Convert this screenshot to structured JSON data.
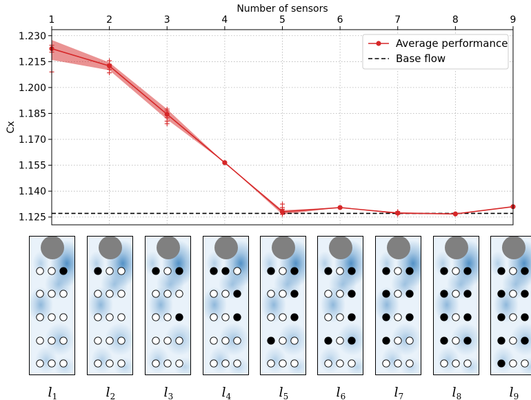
{
  "chart_data": {
    "type": "line",
    "xlabel": "Number of sensors",
    "ylabel": "Cx",
    "xlim": [
      1,
      9
    ],
    "ylim": [
      1.1205,
      1.2335
    ],
    "x_ticks": [
      1,
      2,
      3,
      4,
      5,
      6,
      7,
      8,
      9
    ],
    "y_ticks": [
      "1.230",
      "1.215",
      "1.200",
      "1.185",
      "1.170",
      "1.155",
      "1.140",
      "1.125"
    ],
    "grid": true,
    "legend_position": "top-right",
    "series": [
      {
        "name": "Average performance",
        "color": "#d62728",
        "x": [
          1,
          2,
          3,
          4,
          5,
          6,
          7,
          8,
          9
        ],
        "y": [
          1.2225,
          1.2125,
          1.1845,
          1.1565,
          1.128,
          1.1305,
          1.1273,
          1.1268,
          1.131
        ],
        "band_upper": [
          1.2275,
          1.2145,
          1.1875,
          1.1565,
          1.129,
          1.1305,
          1.1278,
          1.127,
          1.131
        ],
        "band_lower": [
          1.216,
          1.21,
          1.1815,
          1.1565,
          1.1265,
          1.1305,
          1.1268,
          1.1266,
          1.131
        ],
        "samples": [
          [
            1.209,
            1.2205,
            1.2225,
            1.2245
          ],
          [
            1.2085,
            1.2105,
            1.2125,
            1.2135,
            1.2155
          ],
          [
            1.179,
            1.1805,
            1.1825,
            1.1865,
            1.1875
          ],
          [],
          [
            1.1265,
            1.1275,
            1.1295,
            1.1305,
            1.1325
          ],
          [],
          [
            1.1265,
            1.1275,
            1.1282
          ],
          [
            1.1268
          ],
          []
        ]
      },
      {
        "name": "Base flow",
        "color": "#000000",
        "style": "dashed",
        "y_constant": 1.1271
      }
    ]
  },
  "panels": {
    "labels": [
      {
        "main": "l",
        "sub": "1"
      },
      {
        "main": "l",
        "sub": "2"
      },
      {
        "main": "l",
        "sub": "3"
      },
      {
        "main": "l",
        "sub": "4"
      },
      {
        "main": "l",
        "sub": "5"
      },
      {
        "main": "l",
        "sub": "6"
      },
      {
        "main": "l",
        "sub": "7"
      },
      {
        "main": "l",
        "sub": "8"
      },
      {
        "main": "l",
        "sub": "9"
      }
    ],
    "active_sensors": [
      [
        [
          0,
          2
        ]
      ],
      [
        [
          0,
          0
        ]
      ],
      [
        [
          0,
          0
        ],
        [
          0,
          2
        ],
        [
          2,
          2
        ]
      ],
      [
        [
          0,
          0
        ],
        [
          0,
          1
        ],
        [
          1,
          2
        ],
        [
          2,
          2
        ]
      ],
      [
        [
          0,
          0
        ],
        [
          0,
          2
        ],
        [
          1,
          2
        ],
        [
          2,
          2
        ],
        [
          3,
          0
        ]
      ],
      [
        [
          0,
          0
        ],
        [
          0,
          2
        ],
        [
          1,
          2
        ],
        [
          2,
          2
        ],
        [
          3,
          0
        ],
        [
          3,
          2
        ]
      ],
      [
        [
          0,
          0
        ],
        [
          0,
          2
        ],
        [
          1,
          0
        ],
        [
          1,
          2
        ],
        [
          2,
          0
        ],
        [
          2,
          2
        ],
        [
          3,
          0
        ]
      ],
      [
        [
          0,
          0
        ],
        [
          0,
          2
        ],
        [
          1,
          0
        ],
        [
          1,
          2
        ],
        [
          2,
          0
        ],
        [
          2,
          2
        ],
        [
          3,
          0
        ],
        [
          3,
          2
        ]
      ],
      [
        [
          0,
          0
        ],
        [
          0,
          2
        ],
        [
          1,
          0
        ],
        [
          1,
          2
        ],
        [
          2,
          0
        ],
        [
          2,
          2
        ],
        [
          3,
          0
        ],
        [
          3,
          2
        ],
        [
          4,
          0
        ]
      ]
    ],
    "sensor_rows": 5,
    "sensor_cols": 3,
    "cylinder_color": "#808080",
    "field_color": "#2171b5"
  }
}
